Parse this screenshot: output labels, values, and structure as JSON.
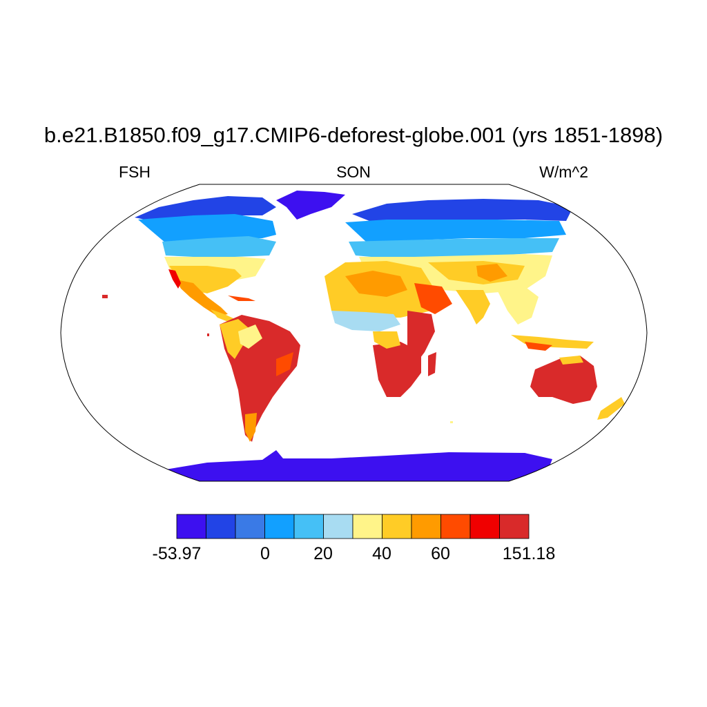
{
  "title": "b.e21.B1850.f09_g17.CMIP6-deforest-globe.001 (yrs 1851-1898)",
  "subtitle_left": "FSH",
  "subtitle_center": "SON",
  "subtitle_right": "W/m^2",
  "colorbar": {
    "colors": [
      "#3d10f0",
      "#2244e6",
      "#3a7ae6",
      "#12a0ff",
      "#45c0f6",
      "#a8dcf2",
      "#fff489",
      "#ffcc26",
      "#ff9b00",
      "#ff4b00",
      "#f00000",
      "#d92a2a"
    ],
    "tick_labels": [
      "-53.97",
      "0",
      "20",
      "40",
      "60",
      "151.18"
    ]
  },
  "map": {
    "projection": "Robinson",
    "variable": "FSH",
    "season": "SON",
    "units": "W/m^2"
  }
}
